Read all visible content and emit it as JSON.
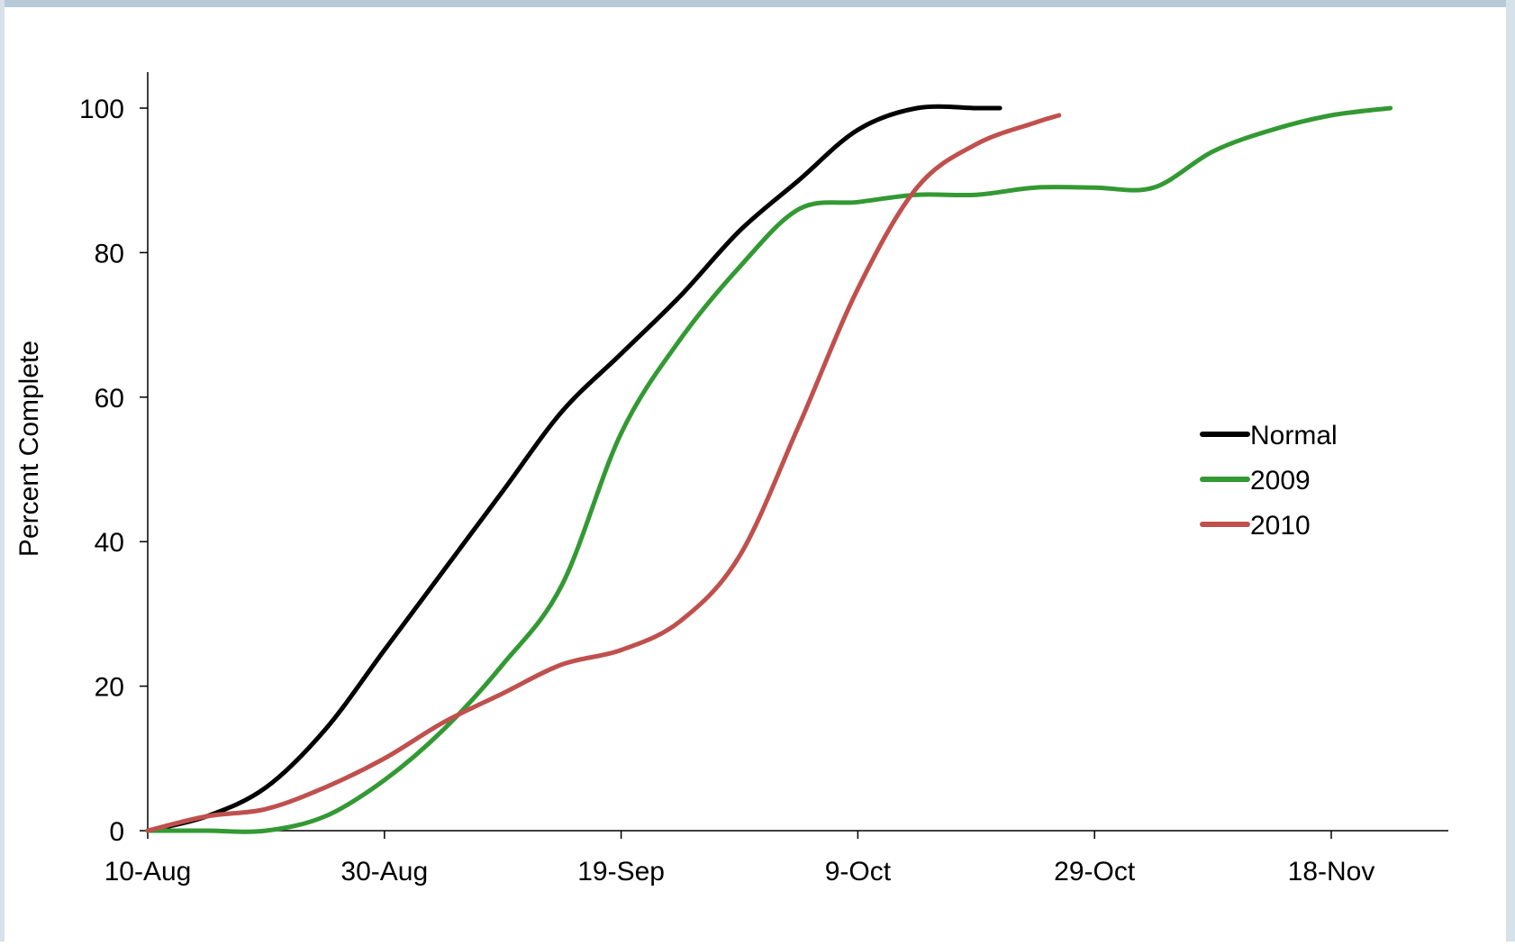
{
  "chart_data": {
    "type": "line",
    "xlabel": "",
    "ylabel": "Percent Complete",
    "xlim": [
      "2010-08-10",
      "2010-11-28"
    ],
    "ylim": [
      0,
      100
    ],
    "x_ticks": [
      "10-Aug",
      "30-Aug",
      "19-Sep",
      "9-Oct",
      "29-Oct",
      "18-Nov"
    ],
    "x_tick_dates": [
      "2010-08-10",
      "2010-08-30",
      "2010-09-19",
      "2010-10-09",
      "2010-10-29",
      "2010-11-18"
    ],
    "y_ticks": [
      0,
      20,
      40,
      60,
      80,
      100
    ],
    "grid": false,
    "legend_position": "right",
    "series": [
      {
        "name": "Normal",
        "color": "#000000",
        "x": [
          "2010-08-10",
          "2010-08-15",
          "2010-08-20",
          "2010-08-25",
          "2010-08-30",
          "2010-09-04",
          "2010-09-09",
          "2010-09-14",
          "2010-09-19",
          "2010-09-24",
          "2010-09-29",
          "2010-10-04",
          "2010-10-09",
          "2010-10-14",
          "2010-10-19",
          "2010-10-21"
        ],
        "y": [
          0,
          2,
          6,
          14,
          25,
          36,
          47,
          58,
          66,
          74,
          83,
          90,
          97,
          100,
          100,
          100
        ]
      },
      {
        "name": "2009",
        "color": "#339933",
        "x": [
          "2010-08-10",
          "2010-08-15",
          "2010-08-20",
          "2010-08-25",
          "2010-08-30",
          "2010-09-04",
          "2010-09-09",
          "2010-09-14",
          "2010-09-19",
          "2010-09-24",
          "2010-09-29",
          "2010-10-04",
          "2010-10-09",
          "2010-10-14",
          "2010-10-19",
          "2010-10-24",
          "2010-10-29",
          "2010-11-03",
          "2010-11-08",
          "2010-11-13",
          "2010-11-18",
          "2010-11-23"
        ],
        "y": [
          0,
          0,
          0,
          2,
          7,
          14,
          23,
          34,
          55,
          68,
          78,
          86,
          87,
          88,
          88,
          89,
          89,
          89,
          94,
          97,
          99,
          100
        ]
      },
      {
        "name": "2010",
        "color": "#c0504d",
        "x": [
          "2010-08-10",
          "2010-08-15",
          "2010-08-20",
          "2010-08-25",
          "2010-08-30",
          "2010-09-04",
          "2010-09-09",
          "2010-09-14",
          "2010-09-19",
          "2010-09-24",
          "2010-09-29",
          "2010-10-04",
          "2010-10-09",
          "2010-10-14",
          "2010-10-19",
          "2010-10-24",
          "2010-10-26"
        ],
        "y": [
          0,
          2,
          3,
          6,
          10,
          15,
          19,
          23,
          25,
          29,
          38,
          56,
          75,
          89,
          95,
          98,
          99
        ]
      }
    ]
  }
}
